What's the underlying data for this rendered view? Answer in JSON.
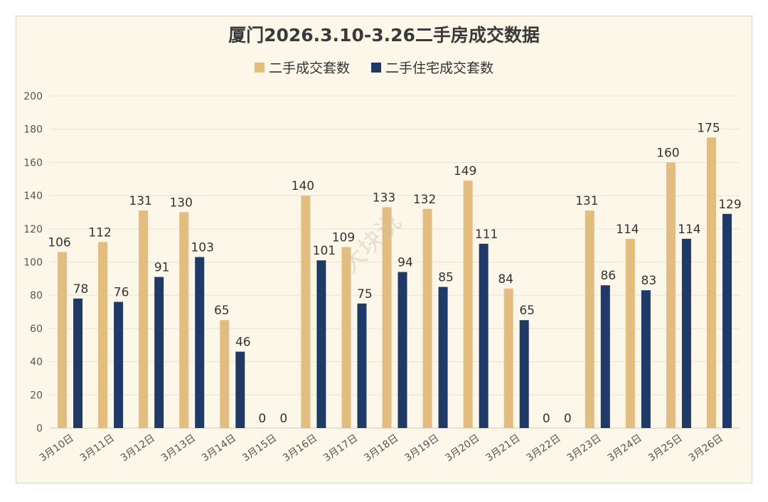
{
  "chart_data": {
    "type": "bar",
    "title": "厦门2026.3.10-3.26二手房成交数据",
    "categories": [
      "3月10日",
      "3月11日",
      "3月12日",
      "3月13日",
      "3月14日",
      "3月15日",
      "3月16日",
      "3月17日",
      "3月18日",
      "3月19日",
      "3月20日",
      "3月21日",
      "3月22日",
      "3月23日",
      "3月24日",
      "3月25日",
      "3月26日"
    ],
    "series": [
      {
        "name": "二手成交套数",
        "color": "#e2bd7f",
        "values": [
          106,
          112,
          131,
          130,
          65,
          0,
          140,
          109,
          133,
          132,
          149,
          84,
          0,
          131,
          114,
          160,
          175
        ]
      },
      {
        "name": "二手住宅成交套数",
        "color": "#1f3a66",
        "values": [
          78,
          76,
          91,
          103,
          46,
          0,
          101,
          75,
          94,
          85,
          111,
          65,
          0,
          86,
          83,
          114,
          129
        ]
      }
    ],
    "yticks": [
      "0",
      "20",
      "40",
      "60",
      "80",
      "100",
      "120",
      "140",
      "160",
      "180",
      "200"
    ],
    "ylim": [
      0,
      200
    ],
    "xlabel": "",
    "ylabel": "",
    "legend": "top-center",
    "watermark": "大块说"
  }
}
